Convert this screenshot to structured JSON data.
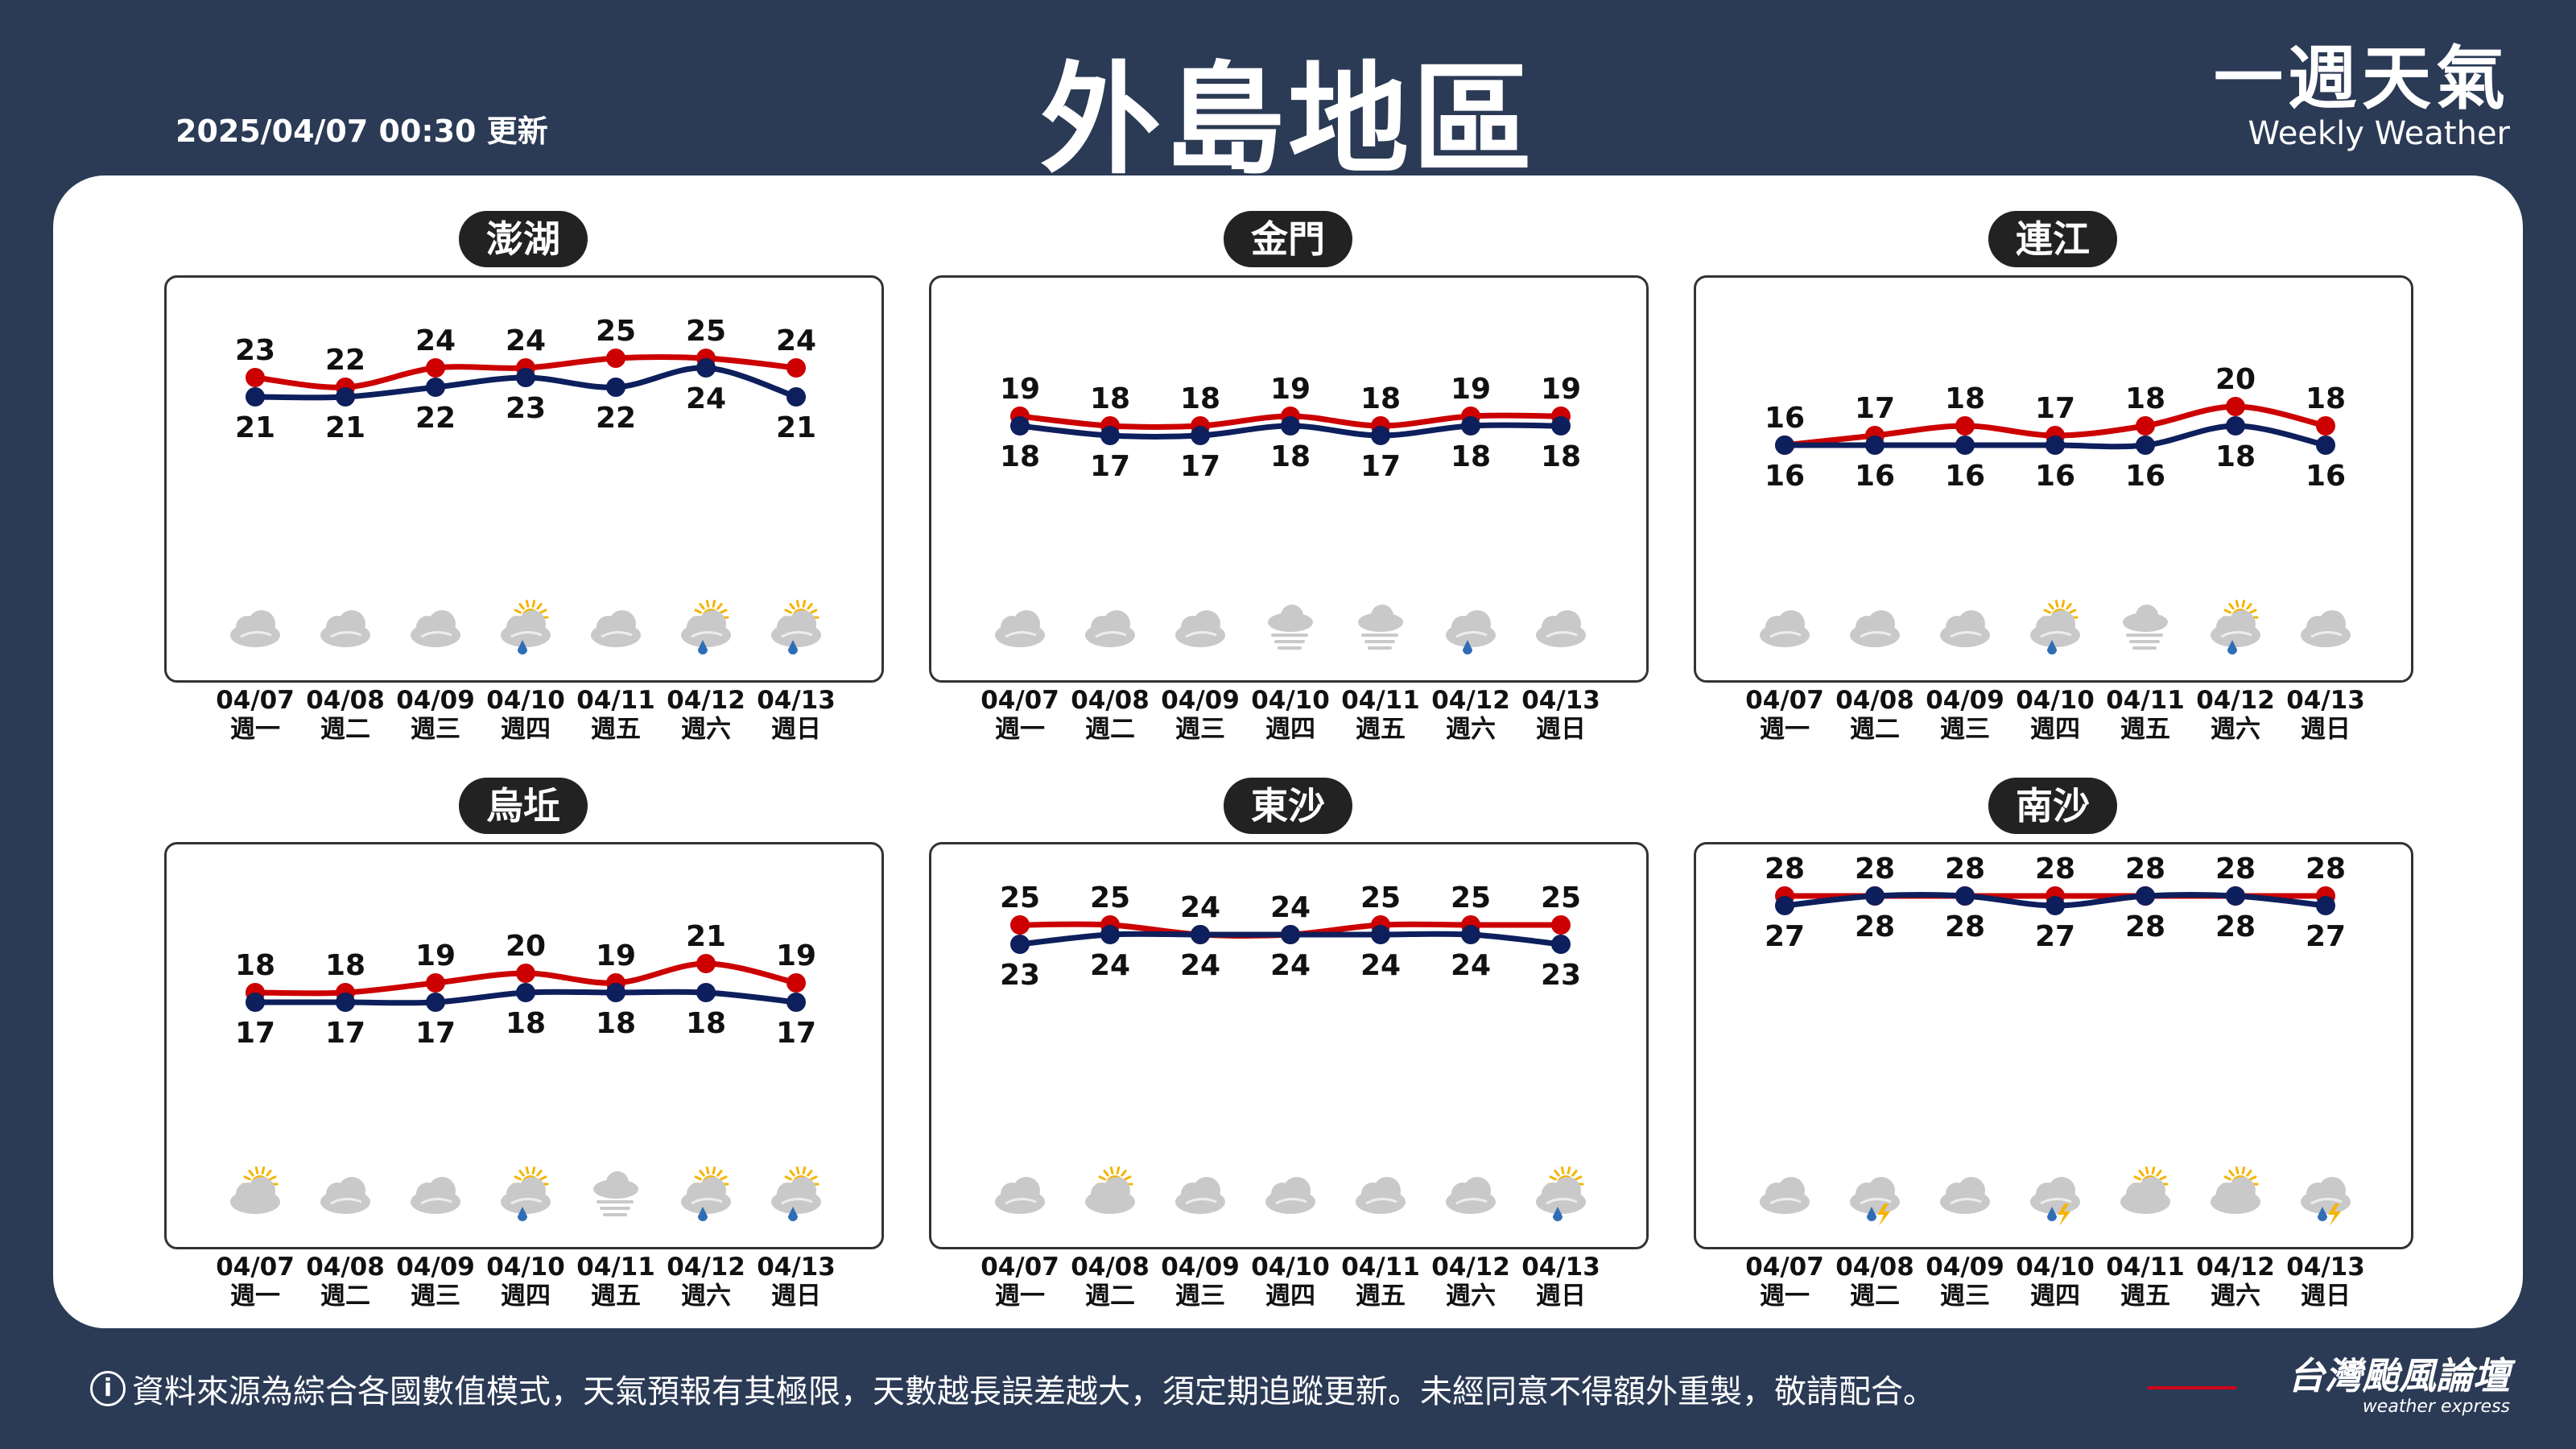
{
  "header": {
    "update_time": "2025/04/07 00:30 更新",
    "title": "外島地區",
    "brand_zh": "一週天氣",
    "brand_en": "Weekly Weather"
  },
  "footer": {
    "info_symbol": "i",
    "disclaimer": "資料來源為綜合各國數值模式，天氣預報有其極限，天數越長誤差越大，須定期追蹤更新。未經同意不得額外重製，敬請配合。",
    "brand_zh": "台灣颱風論壇",
    "brand_en": "weather express"
  },
  "colors": {
    "background": "#2b3a55",
    "high_line": "#cc0000",
    "low_line": "#0d1f5c",
    "pill": "#222222"
  },
  "chart_data": [
    {
      "type": "line",
      "title": "澎湖",
      "categories": [
        "04/07",
        "04/08",
        "04/09",
        "04/10",
        "04/11",
        "04/12",
        "04/13"
      ],
      "weekdays": [
        "週一",
        "週二",
        "週三",
        "週四",
        "週五",
        "週六",
        "週日"
      ],
      "series": [
        {
          "values": [
            23,
            22,
            24,
            24,
            25,
            25,
            24
          ]
        },
        {
          "values": [
            21,
            21,
            22,
            23,
            22,
            24,
            21
          ]
        }
      ],
      "icons": [
        "cloudy",
        "cloudy",
        "cloudy",
        "partly-sunny-rain",
        "cloudy",
        "partly-sunny-rain",
        "partly-sunny-rain"
      ]
    },
    {
      "type": "line",
      "title": "金門",
      "categories": [
        "04/07",
        "04/08",
        "04/09",
        "04/10",
        "04/11",
        "04/12",
        "04/13"
      ],
      "weekdays": [
        "週一",
        "週二",
        "週三",
        "週四",
        "週五",
        "週六",
        "週日"
      ],
      "series": [
        {
          "values": [
            19,
            18,
            18,
            19,
            18,
            19,
            19
          ]
        },
        {
          "values": [
            18,
            17,
            17,
            18,
            17,
            18,
            18
          ]
        }
      ],
      "icons": [
        "cloudy",
        "cloudy",
        "cloudy",
        "fog",
        "fog",
        "cloud-rain",
        "cloudy"
      ]
    },
    {
      "type": "line",
      "title": "連江",
      "categories": [
        "04/07",
        "04/08",
        "04/09",
        "04/10",
        "04/11",
        "04/12",
        "04/13"
      ],
      "weekdays": [
        "週一",
        "週二",
        "週三",
        "週四",
        "週五",
        "週六",
        "週日"
      ],
      "series": [
        {
          "values": [
            16,
            17,
            18,
            17,
            18,
            20,
            18
          ]
        },
        {
          "values": [
            16,
            16,
            16,
            16,
            16,
            18,
            16
          ]
        }
      ],
      "icons": [
        "cloudy",
        "cloudy",
        "cloudy",
        "partly-sunny-rain",
        "fog",
        "partly-sunny-rain",
        "cloudy"
      ]
    },
    {
      "type": "line",
      "title": "烏坵",
      "categories": [
        "04/07",
        "04/08",
        "04/09",
        "04/10",
        "04/11",
        "04/12",
        "04/13"
      ],
      "weekdays": [
        "週一",
        "週二",
        "週三",
        "週四",
        "週五",
        "週六",
        "週日"
      ],
      "series": [
        {
          "values": [
            18,
            18,
            19,
            20,
            19,
            21,
            19
          ]
        },
        {
          "values": [
            17,
            17,
            17,
            18,
            18,
            18,
            17
          ]
        }
      ],
      "icons": [
        "partly-sunny",
        "cloudy",
        "cloudy",
        "partly-sunny-rain",
        "fog",
        "partly-sunny-rain",
        "partly-sunny-rain"
      ]
    },
    {
      "type": "line",
      "title": "東沙",
      "categories": [
        "04/07",
        "04/08",
        "04/09",
        "04/10",
        "04/11",
        "04/12",
        "04/13"
      ],
      "weekdays": [
        "週一",
        "週二",
        "週三",
        "週四",
        "週五",
        "週六",
        "週日"
      ],
      "series": [
        {
          "values": [
            25,
            25,
            24,
            24,
            25,
            25,
            25
          ]
        },
        {
          "values": [
            23,
            24,
            24,
            24,
            24,
            24,
            23
          ]
        }
      ],
      "icons": [
        "cloudy",
        "partly-sunny",
        "cloudy",
        "cloudy",
        "cloudy",
        "cloudy",
        "partly-sunny-rain"
      ]
    },
    {
      "type": "line",
      "title": "南沙",
      "categories": [
        "04/07",
        "04/08",
        "04/09",
        "04/10",
        "04/11",
        "04/12",
        "04/13"
      ],
      "weekdays": [
        "週一",
        "週二",
        "週三",
        "週四",
        "週五",
        "週六",
        "週日"
      ],
      "series": [
        {
          "values": [
            28,
            28,
            28,
            28,
            28,
            28,
            28
          ]
        },
        {
          "values": [
            27,
            28,
            28,
            27,
            28,
            28,
            27
          ]
        }
      ],
      "icons": [
        "cloudy",
        "thunderstorm",
        "cloudy",
        "thunderstorm",
        "partly-sunny",
        "partly-sunny",
        "thunderstorm"
      ]
    }
  ]
}
